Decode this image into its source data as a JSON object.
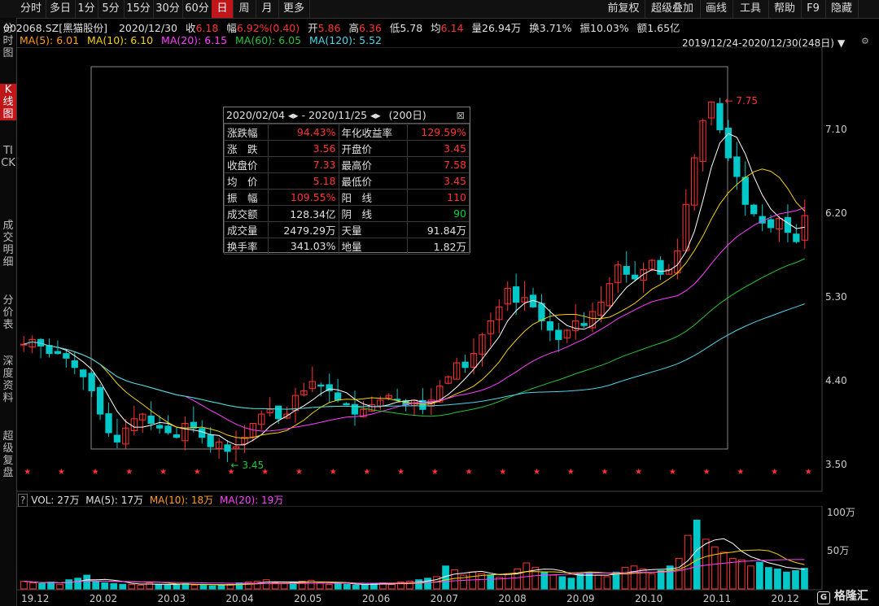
{
  "toolbar": {
    "left_items": [
      "分时",
      "多日",
      "1分",
      "5分",
      "15分",
      "30分",
      "60分",
      "日",
      "周",
      "月",
      "更多"
    ],
    "active": "日",
    "right_items": [
      "前复权",
      "超级叠加",
      "画线",
      "工具",
      "帮助",
      "F9",
      "隐藏"
    ]
  },
  "sidebar": {
    "items": [
      "分时图",
      "K线图",
      "TICK",
      "成交明细",
      "分价表",
      "深度资料",
      "超级复盘"
    ],
    "active": "K线图"
  },
  "quote": {
    "code": "002068.SZ[黑猫股份]",
    "date": "2020/12/30",
    "close_label": "收",
    "close": "6.18",
    "change_label": "幅",
    "change": "6.92%(0.40)",
    "open_label": "开",
    "open": "5.86",
    "high_label": "高",
    "high": "6.36",
    "low_label": "低",
    "low": "5.78",
    "avg_label": "均",
    "avg": "6.14",
    "volume_label": "量",
    "volume": "26.94万",
    "turnover_label": "换",
    "turnover": "3.71%",
    "amplitude_label": "振",
    "amplitude": "10.03%",
    "amount_label": "额",
    "amount": "1.65亿"
  },
  "ma_line": {
    "ma5": "MA(5): 6.01",
    "ma10": "MA(10): 6.10",
    "ma20": "MA(20): 6.15",
    "ma60": "MA(60): 6.05",
    "ma120": "MA(120): 5.52"
  },
  "range_label": "2019/12/24-2020/12/30(248日)",
  "stats": {
    "header_start": "2020/02/04",
    "header_end": "2020/11/25",
    "header_days": "(200日)",
    "rows": [
      {
        "k1": "涨跌幅",
        "v1": "94.43%",
        "k2": "年化收益率",
        "v2": "129.59%"
      },
      {
        "k1": "涨　跌",
        "v1": "3.56",
        "k2": "开盘价",
        "v2": "3.45"
      },
      {
        "k1": "收盘价",
        "v1": "7.33",
        "k2": "最高价",
        "v2": "7.58"
      },
      {
        "k1": "均　价",
        "v1": "5.18",
        "k2": "最低价",
        "v2": "3.45"
      },
      {
        "k1": "振　幅",
        "v1": "109.55%",
        "k2": "阳　线",
        "v2": "110"
      },
      {
        "k1": "成交额",
        "v1": "128.34亿",
        "k2": "阴　线",
        "v2": "90"
      },
      {
        "k1": "成交量",
        "v1": "2479.29万",
        "k2": "天量",
        "v2": "91.84万"
      },
      {
        "k1": "换手率",
        "v1": "341.03%",
        "k2": "地量",
        "v2": "1.82万"
      }
    ]
  },
  "chart_data": {
    "type": "candlestick",
    "price_axis": {
      "ticks": [
        "7.10",
        "6.20",
        "5.30",
        "4.40",
        "3.50"
      ],
      "ylim": [
        3.3,
        7.9
      ]
    },
    "annotations": {
      "high": "7.75",
      "low": "3.45"
    },
    "x_ticks": [
      "19.12",
      "20.02",
      "20.03",
      "20.04",
      "20.05",
      "20.06",
      "20.07",
      "20.08",
      "20.09",
      "20.10",
      "20.11",
      "20.12"
    ],
    "approx_close_series": [
      4.8,
      4.85,
      4.78,
      4.7,
      4.7,
      4.65,
      4.55,
      4.45,
      4.3,
      4.05,
      3.85,
      3.75,
      3.9,
      4.0,
      4.05,
      3.95,
      3.9,
      3.85,
      3.8,
      3.95,
      3.9,
      3.8,
      3.7,
      3.75,
      3.65,
      3.7,
      3.8,
      3.95,
      4.05,
      4.1,
      4.0,
      4.05,
      4.25,
      4.3,
      4.4,
      4.35,
      4.3,
      4.2,
      4.15,
      4.05,
      4.1,
      4.15,
      4.2,
      4.25,
      4.2,
      4.15,
      4.2,
      4.1,
      4.2,
      4.35,
      4.45,
      4.6,
      4.55,
      4.7,
      4.9,
      5.05,
      5.2,
      5.4,
      5.25,
      5.3,
      5.2,
      5.05,
      4.95,
      4.85,
      4.95,
      5.05,
      5.0,
      5.15,
      5.25,
      5.45,
      5.65,
      5.55,
      5.5,
      5.6,
      5.7,
      5.55,
      5.6,
      5.8,
      6.3,
      6.8,
      7.2,
      7.4,
      7.1,
      6.8,
      6.6,
      6.3,
      6.2,
      6.1,
      6.05,
      6.15,
      6.0,
      5.9,
      6.18
    ],
    "volume_axis": {
      "ticks": [
        "100万",
        "50万"
      ],
      "ylim": [
        0,
        100
      ]
    },
    "volume_label": "VOL: 27万",
    "volume_ma5": "MA(5): 17万",
    "volume_ma10": "MA(10): 18万",
    "volume_ma20": "MA(20): 19万",
    "approx_volume_series": [
      10,
      8,
      7,
      9,
      6,
      12,
      14,
      18,
      10,
      8,
      7,
      6,
      6,
      5,
      8,
      6,
      5,
      6,
      7,
      5,
      6,
      4,
      5,
      6,
      8,
      9,
      10,
      12,
      8,
      7,
      9,
      10,
      11,
      8,
      6,
      7,
      6,
      5,
      6,
      7,
      8,
      6,
      9,
      10,
      12,
      14,
      16,
      30,
      25,
      18,
      22,
      20,
      18,
      15,
      20,
      26,
      34,
      28,
      22,
      18,
      16,
      14,
      20,
      22,
      18,
      16,
      22,
      28,
      30,
      26,
      20,
      24,
      30,
      40,
      70,
      90,
      65,
      55,
      48,
      40,
      38,
      30,
      35,
      28,
      26,
      22,
      24,
      27
    ]
  },
  "colors": {
    "up": "#ff3232",
    "down": "#00c8c8",
    "ma5": "#ffffff",
    "ma10": "#f5d300",
    "ma20": "#ff40ff",
    "ma60": "#26c43a",
    "ma120": "#4fd4e6"
  },
  "logo": "格隆汇"
}
